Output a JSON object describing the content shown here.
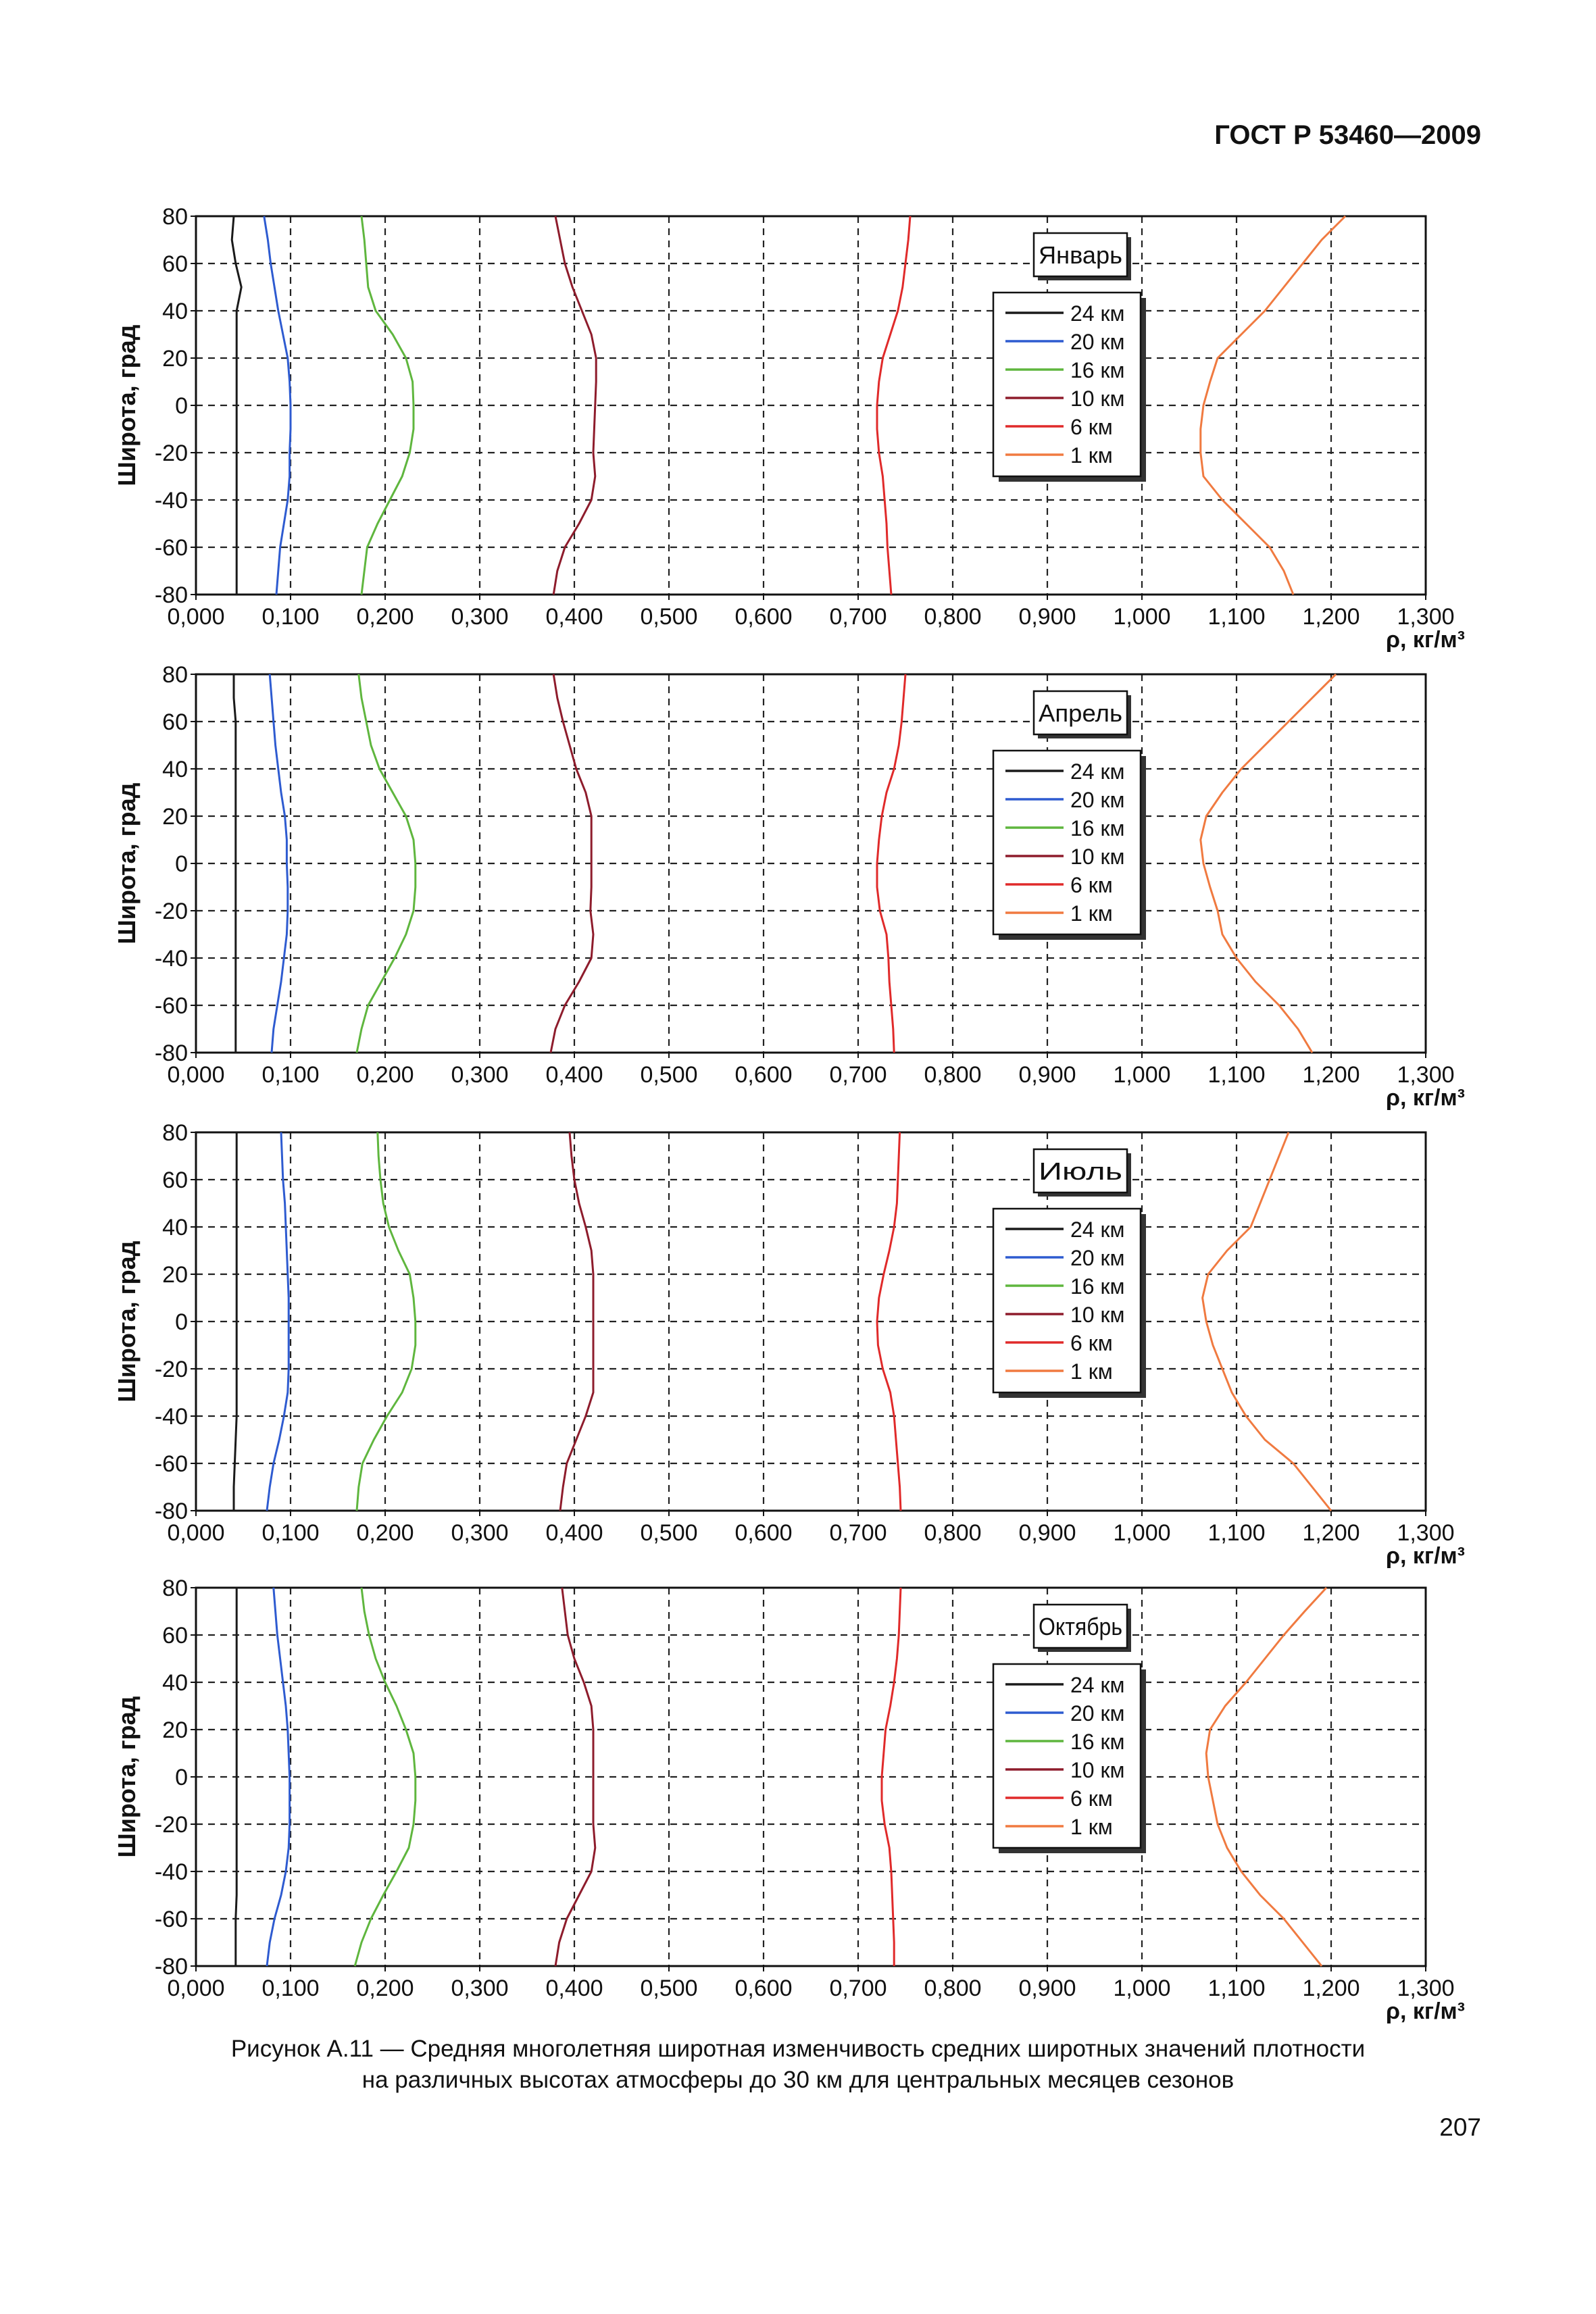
{
  "header": {
    "standard": "ГОСТ Р 53460—2009"
  },
  "caption": {
    "line1": "Рисунок  А.11 — Средняя многолетняя широтная изменчивость средних широтных значений плотности",
    "line2": "на различных высотах атмосферы до 30 км для центральных месяцев сезонов"
  },
  "page_number": "207",
  "colors": {
    "24 км": "#1a1a1a",
    "20 км": "#2e5bd0",
    "16 км": "#5fb63e",
    "10 км": "#8e1c2c",
    "6 км": "#e02a2a",
    "1 км": "#f07a40"
  },
  "chart_data": [
    {
      "type": "line",
      "title": "Январь",
      "xlabel": "ρ, кг/м³",
      "ylabel": "Широта, град",
      "xlim": [
        0,
        1.3
      ],
      "ylim": [
        -80,
        80
      ],
      "x_ticks": [
        "0,000",
        "0,100",
        "0,200",
        "0,300",
        "0,400",
        "0,500",
        "0,600",
        "0,700",
        "0,800",
        "0,900",
        "1,000",
        "1,100",
        "1,200",
        "1,300"
      ],
      "y_ticks": [
        "80",
        "60",
        "40",
        "20",
        "0",
        "-20",
        "-40",
        "-60",
        "-80"
      ],
      "grid": true,
      "legend_position": "upper-right",
      "latitudes": [
        -80,
        -70,
        -60,
        -50,
        -40,
        -30,
        -20,
        -10,
        0,
        10,
        20,
        30,
        40,
        50,
        60,
        70,
        80
      ],
      "series": [
        {
          "name": "24 км",
          "values": [
            0.043,
            0.043,
            0.043,
            0.043,
            0.043,
            0.043,
            0.043,
            0.043,
            0.043,
            0.043,
            0.043,
            0.043,
            0.043,
            0.048,
            0.042,
            0.038,
            0.04
          ]
        },
        {
          "name": "20 км",
          "values": [
            0.085,
            0.087,
            0.089,
            0.093,
            0.097,
            0.099,
            0.099,
            0.1,
            0.1,
            0.099,
            0.097,
            0.092,
            0.087,
            0.083,
            0.079,
            0.076,
            0.072
          ]
        },
        {
          "name": "16 км",
          "values": [
            0.175,
            0.178,
            0.181,
            0.192,
            0.205,
            0.218,
            0.226,
            0.23,
            0.23,
            0.229,
            0.222,
            0.208,
            0.19,
            0.182,
            0.18,
            0.178,
            0.175
          ]
        },
        {
          "name": "10 км",
          "values": [
            0.378,
            0.382,
            0.39,
            0.405,
            0.418,
            0.422,
            0.42,
            0.421,
            0.422,
            0.423,
            0.423,
            0.418,
            0.408,
            0.398,
            0.39,
            0.385,
            0.38
          ]
        },
        {
          "name": "6 км",
          "values": [
            0.735,
            0.733,
            0.731,
            0.73,
            0.728,
            0.726,
            0.722,
            0.72,
            0.72,
            0.722,
            0.726,
            0.734,
            0.742,
            0.747,
            0.75,
            0.753,
            0.755
          ]
        },
        {
          "name": "1 км",
          "values": [
            1.16,
            1.15,
            1.135,
            1.11,
            1.085,
            1.065,
            1.062,
            1.062,
            1.065,
            1.072,
            1.08,
            1.105,
            1.13,
            1.15,
            1.17,
            1.19,
            1.215
          ]
        }
      ]
    },
    {
      "type": "line",
      "title": "Апрель",
      "xlabel": "ρ, кг/м³",
      "ylabel": "Широта, град",
      "xlim": [
        0,
        1.3
      ],
      "ylim": [
        -80,
        80
      ],
      "x_ticks": [
        "0,000",
        "0,100",
        "0,200",
        "0,300",
        "0,400",
        "0,500",
        "0,600",
        "0,700",
        "0,800",
        "0,900",
        "1,000",
        "1,100",
        "1,200",
        "1,300"
      ],
      "y_ticks": [
        "80",
        "60",
        "40",
        "20",
        "0",
        "-20",
        "-40",
        "-60",
        "-80"
      ],
      "grid": true,
      "legend_position": "upper-right",
      "latitudes": [
        -80,
        -70,
        -60,
        -50,
        -40,
        -30,
        -20,
        -10,
        0,
        10,
        20,
        30,
        40,
        50,
        60,
        70,
        80
      ],
      "series": [
        {
          "name": "24 км",
          "values": [
            0.042,
            0.042,
            0.042,
            0.042,
            0.042,
            0.042,
            0.042,
            0.042,
            0.042,
            0.042,
            0.042,
            0.042,
            0.042,
            0.042,
            0.042,
            0.04,
            0.04
          ]
        },
        {
          "name": "20 км",
          "values": [
            0.08,
            0.082,
            0.086,
            0.09,
            0.093,
            0.096,
            0.097,
            0.097,
            0.096,
            0.096,
            0.094,
            0.09,
            0.087,
            0.084,
            0.082,
            0.08,
            0.078
          ]
        },
        {
          "name": "16 км",
          "values": [
            0.17,
            0.175,
            0.182,
            0.196,
            0.21,
            0.222,
            0.23,
            0.232,
            0.232,
            0.23,
            0.222,
            0.208,
            0.194,
            0.185,
            0.18,
            0.175,
            0.172
          ]
        },
        {
          "name": "10 км",
          "values": [
            0.375,
            0.38,
            0.39,
            0.405,
            0.418,
            0.42,
            0.417,
            0.418,
            0.418,
            0.418,
            0.418,
            0.412,
            0.402,
            0.395,
            0.388,
            0.382,
            0.378
          ]
        },
        {
          "name": "6 км",
          "values": [
            0.738,
            0.737,
            0.735,
            0.733,
            0.732,
            0.73,
            0.723,
            0.72,
            0.72,
            0.722,
            0.725,
            0.73,
            0.738,
            0.743,
            0.746,
            0.748,
            0.75
          ]
        },
        {
          "name": "1 км",
          "values": [
            1.18,
            1.165,
            1.145,
            1.12,
            1.1,
            1.085,
            1.08,
            1.072,
            1.065,
            1.062,
            1.068,
            1.085,
            1.105,
            1.13,
            1.155,
            1.18,
            1.205
          ]
        }
      ]
    },
    {
      "type": "line",
      "title": "Июль",
      "xlabel": "ρ, кг/м³",
      "ylabel": "Широта, град",
      "xlim": [
        0,
        1.3
      ],
      "ylim": [
        -80,
        80
      ],
      "x_ticks": [
        "0,000",
        "0,100",
        "0,200",
        "0,300",
        "0,400",
        "0,500",
        "0,600",
        "0,700",
        "0,800",
        "0,900",
        "1,000",
        "1,100",
        "1,200",
        "1,300"
      ],
      "y_ticks": [
        "80",
        "60",
        "40",
        "20",
        "0",
        "-20",
        "-40",
        "-60",
        "-80"
      ],
      "grid": true,
      "legend_position": "upper-right",
      "latitudes": [
        -80,
        -70,
        -60,
        -50,
        -40,
        -30,
        -20,
        -10,
        0,
        10,
        20,
        30,
        40,
        50,
        60,
        70,
        80
      ],
      "series": [
        {
          "name": "24 км",
          "values": [
            0.04,
            0.04,
            0.041,
            0.042,
            0.043,
            0.043,
            0.043,
            0.043,
            0.043,
            0.043,
            0.043,
            0.043,
            0.043,
            0.043,
            0.043,
            0.043,
            0.043
          ]
        },
        {
          "name": "20 км",
          "values": [
            0.075,
            0.078,
            0.082,
            0.088,
            0.093,
            0.097,
            0.098,
            0.098,
            0.098,
            0.098,
            0.097,
            0.096,
            0.095,
            0.094,
            0.092,
            0.091,
            0.09
          ]
        },
        {
          "name": "16 км",
          "values": [
            0.17,
            0.172,
            0.176,
            0.188,
            0.202,
            0.218,
            0.228,
            0.232,
            0.232,
            0.23,
            0.226,
            0.214,
            0.204,
            0.198,
            0.195,
            0.193,
            0.192
          ]
        },
        {
          "name": "10 км",
          "values": [
            0.385,
            0.388,
            0.392,
            0.402,
            0.412,
            0.42,
            0.42,
            0.42,
            0.42,
            0.42,
            0.42,
            0.418,
            0.412,
            0.405,
            0.4,
            0.397,
            0.395
          ]
        },
        {
          "name": "6 км",
          "values": [
            0.745,
            0.744,
            0.742,
            0.74,
            0.738,
            0.734,
            0.726,
            0.721,
            0.72,
            0.722,
            0.727,
            0.733,
            0.738,
            0.741,
            0.742,
            0.743,
            0.744
          ]
        },
        {
          "name": "1 км",
          "values": [
            1.2,
            1.18,
            1.16,
            1.13,
            1.11,
            1.095,
            1.085,
            1.075,
            1.068,
            1.064,
            1.07,
            1.09,
            1.115,
            1.125,
            1.135,
            1.145,
            1.155
          ]
        }
      ]
    },
    {
      "type": "line",
      "title": "Октябрь",
      "xlabel": "ρ, кг/м³",
      "ylabel": "Широта, град",
      "xlim": [
        0,
        1.3
      ],
      "ylim": [
        -80,
        80
      ],
      "x_ticks": [
        "0,000",
        "0,100",
        "0,200",
        "0,300",
        "0,400",
        "0,500",
        "0,600",
        "0,700",
        "0,800",
        "0,900",
        "1,000",
        "1,100",
        "1,200",
        "1,300"
      ],
      "y_ticks": [
        "80",
        "60",
        "40",
        "20",
        "0",
        "-20",
        "-40",
        "-60",
        "-80"
      ],
      "grid": true,
      "legend_position": "upper-right",
      "latitudes": [
        -80,
        -70,
        -60,
        -50,
        -40,
        -30,
        -20,
        -10,
        0,
        10,
        20,
        30,
        40,
        50,
        60,
        70,
        80
      ],
      "series": [
        {
          "name": "24 км",
          "values": [
            0.042,
            0.042,
            0.042,
            0.043,
            0.043,
            0.043,
            0.043,
            0.043,
            0.043,
            0.043,
            0.043,
            0.043,
            0.043,
            0.043,
            0.043,
            0.043,
            0.043
          ]
        },
        {
          "name": "20 км",
          "values": [
            0.075,
            0.078,
            0.083,
            0.09,
            0.095,
            0.098,
            0.099,
            0.099,
            0.099,
            0.098,
            0.097,
            0.095,
            0.092,
            0.089,
            0.086,
            0.084,
            0.082
          ]
        },
        {
          "name": "16 км",
          "values": [
            0.168,
            0.175,
            0.185,
            0.198,
            0.212,
            0.225,
            0.23,
            0.232,
            0.232,
            0.23,
            0.222,
            0.212,
            0.2,
            0.19,
            0.183,
            0.178,
            0.175
          ]
        },
        {
          "name": "10 км",
          "values": [
            0.38,
            0.384,
            0.392,
            0.405,
            0.418,
            0.422,
            0.42,
            0.42,
            0.42,
            0.42,
            0.42,
            0.418,
            0.41,
            0.4,
            0.393,
            0.39,
            0.387
          ]
        },
        {
          "name": "6 км",
          "values": [
            0.738,
            0.738,
            0.737,
            0.736,
            0.735,
            0.733,
            0.728,
            0.725,
            0.725,
            0.727,
            0.729,
            0.734,
            0.738,
            0.741,
            0.743,
            0.744,
            0.745
          ]
        },
        {
          "name": "1 км",
          "values": [
            1.19,
            1.17,
            1.15,
            1.125,
            1.105,
            1.09,
            1.08,
            1.075,
            1.07,
            1.068,
            1.072,
            1.088,
            1.11,
            1.13,
            1.15,
            1.172,
            1.195
          ]
        }
      ]
    }
  ]
}
